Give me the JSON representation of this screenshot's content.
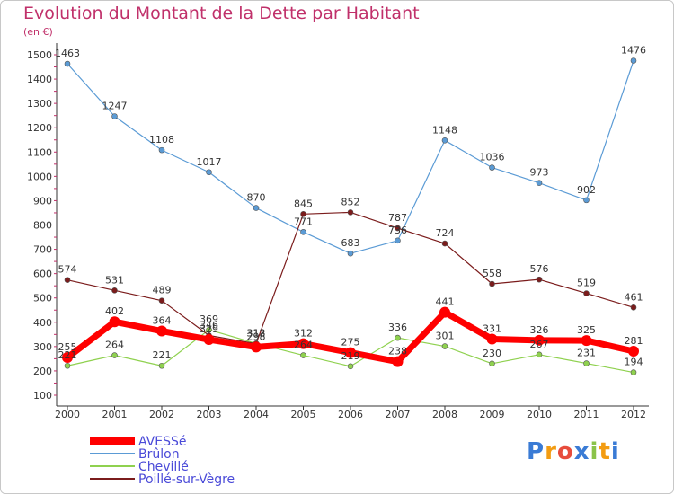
{
  "chart_data": {
    "type": "line",
    "title": "Evolution du Montant de la Dette par Habitant",
    "unit_label": "(en €)",
    "x": [
      "2000",
      "2001",
      "2002",
      "2003",
      "2004",
      "2005",
      "2006",
      "2007",
      "2008",
      "2009",
      "2010",
      "2011",
      "2012"
    ],
    "ylim": [
      100,
      1500
    ],
    "yticks": [
      100,
      200,
      300,
      400,
      500,
      600,
      700,
      800,
      900,
      1000,
      1100,
      1200,
      1300,
      1400,
      1500
    ],
    "grid": false,
    "legend_position": "bottom-left",
    "series": [
      {
        "name": "AVESSé",
        "color": "#ff0000",
        "values": [
          255,
          402,
          364,
          329,
          298,
          312,
          275,
          238,
          441,
          331,
          326,
          325,
          281
        ]
      },
      {
        "name": "Brûlon",
        "color": "#5b9bd5",
        "values": [
          1463,
          1247,
          1108,
          1017,
          870,
          771,
          683,
          736,
          1148,
          1036,
          973,
          902,
          1476
        ]
      },
      {
        "name": "Chevillé",
        "color": "#8fd14f",
        "values": [
          221,
          264,
          221,
          369,
          313,
          264,
          219,
          336,
          301,
          230,
          267,
          231,
          194
        ]
      },
      {
        "name": "Poillé-sur-Vègre",
        "color": "#7b1c1c",
        "values": [
          574,
          531,
          489,
          346,
          312,
          845,
          852,
          787,
          724,
          558,
          576,
          519,
          461
        ]
      }
    ]
  },
  "logo": {
    "text": "Proxiti",
    "colors": [
      "#3a7bd5",
      "#f39c12",
      "#e74c3c",
      "#3a7bd5",
      "#8bc34a",
      "#f39c12",
      "#3a7bd5"
    ]
  }
}
